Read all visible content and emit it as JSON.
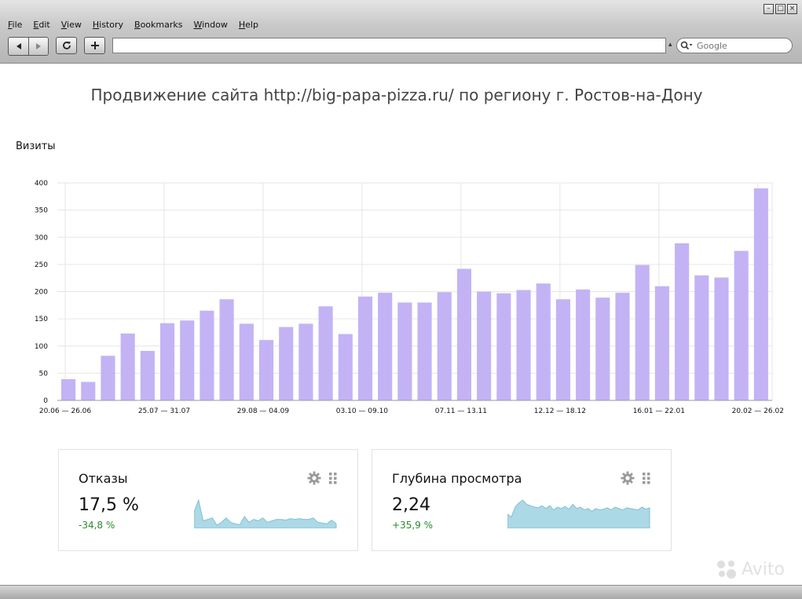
{
  "menu": [
    {
      "label": "File",
      "u": "F",
      "rest": "ile"
    },
    {
      "label": "Edit",
      "u": "E",
      "rest": "dit"
    },
    {
      "label": "View",
      "u": "V",
      "rest": "iew"
    },
    {
      "label": "History",
      "u": "H",
      "rest": "istory"
    },
    {
      "label": "Bookmarks",
      "u": "B",
      "rest": "ookmarks"
    },
    {
      "label": "Window",
      "u": "W",
      "rest": "indow"
    },
    {
      "label": "Help",
      "u": "H",
      "rest": "elp"
    }
  ],
  "toolbar": {
    "back_icon": "back-arrow-icon",
    "forward_icon": "forward-arrow-icon",
    "reload_icon": "reload-icon",
    "add_icon": "plus-icon",
    "url_value": "",
    "search_placeholder": "Google"
  },
  "page": {
    "title": "Продвижение сайта http://big-papa-pizza.ru/ по региону г. Ростов-на-Дону"
  },
  "chart_data": {
    "type": "bar",
    "title": "Визиты",
    "ylim": [
      0,
      400
    ],
    "yticks": [
      "0",
      "50",
      "100",
      "150",
      "200",
      "250",
      "300",
      "350",
      "400"
    ],
    "xtick_labels": [
      "20.06 — 26.06",
      "25.07 — 31.07",
      "29.08 — 04.09",
      "03.10 — 09.10",
      "07.11 — 13.11",
      "12.12 — 18.12",
      "16.01 — 22.01",
      "20.02 — 26.02"
    ],
    "values": [
      39,
      34,
      82,
      123,
      91,
      142,
      147,
      165,
      186,
      141,
      111,
      135,
      141,
      173,
      122,
      191,
      198,
      180,
      180,
      199,
      242,
      200,
      197,
      203,
      215,
      186,
      204,
      189,
      198,
      249,
      210,
      289,
      230,
      226,
      275,
      390
    ],
    "bar_color": "#c3b3f5",
    "grid": true
  },
  "widgets": [
    {
      "title": "Отказы",
      "value": "17,5 %",
      "delta": "-34,8 %",
      "gear_icon": "gear-icon",
      "drag_icon": "drag-handle-icon",
      "spark": [
        20,
        36,
        8,
        10,
        12,
        2,
        6,
        12,
        6,
        4,
        3,
        14,
        6,
        10,
        8,
        12,
        6,
        8,
        10,
        10,
        9,
        11,
        10,
        11,
        10,
        10,
        12,
        6,
        5,
        4,
        9,
        4
      ]
    },
    {
      "title": "Глубина просмотра",
      "value": "2,24",
      "delta": "+35,9 %",
      "gear_icon": "gear-icon",
      "drag_icon": "drag-handle-icon",
      "spark": [
        18,
        14,
        28,
        34,
        38,
        32,
        30,
        28,
        27,
        30,
        26,
        30,
        24,
        28,
        26,
        29,
        25,
        32,
        26,
        28,
        24,
        26,
        22,
        26,
        24,
        25,
        27,
        24,
        28,
        26,
        24,
        27,
        26,
        25,
        24,
        28,
        25,
        27
      ]
    }
  ],
  "watermark": "Avito",
  "colors": {
    "spark_fill": "#add8e6",
    "delta_green": "#2a8a2a",
    "grid": "#e6e6e6"
  }
}
